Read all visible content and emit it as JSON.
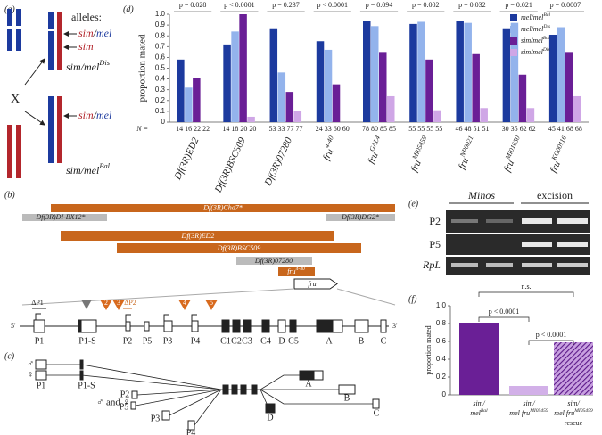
{
  "panel_labels": [
    "(a)",
    "(b)",
    "(c)",
    "(d)",
    "(e)",
    "(f)"
  ],
  "a": {
    "alleles": "alleles:",
    "top_sim_mel": [
      "sim",
      "/",
      "mel"
    ],
    "top_sim": "sim",
    "dis": {
      "text": "sim/mel",
      "sup": "Dis"
    },
    "cross": "X",
    "bottom_sim_mel": [
      "sim",
      "/",
      "mel"
    ],
    "bal": {
      "text": "sim/mel",
      "sup": "Bal"
    }
  },
  "b": {
    "deficiencies": [
      "Df(3R)Cha7*",
      "Df(3R)DI-BX12*",
      "Df(3R)DG2*",
      "Df(3R)ED2",
      "Df(3R)BSC509",
      "Df(3R)07280"
    ],
    "fru_allele": {
      "text": "fru",
      "sup": "4-40"
    },
    "gene": "fru",
    "deltas": [
      "ΔP1",
      "ΔP2"
    ],
    "insertions": [
      "2",
      "3",
      "4",
      "5"
    ],
    "ends": [
      "5'",
      "3'"
    ],
    "exons": [
      "P1",
      "P1-S",
      "P2",
      "P5",
      "P3",
      "P4",
      "C1",
      "C2",
      "C3",
      "C4",
      "D",
      "C5",
      "A",
      "B",
      "C"
    ]
  },
  "c": {
    "male": "♂",
    "female": "♀",
    "both": "♂ and ♀",
    "exons": [
      "P1",
      "P1-S",
      "P2",
      "P5",
      "P3",
      "P4",
      "A",
      "B",
      "C",
      "D"
    ]
  },
  "e": {
    "headers": [
      "Minos",
      "excision"
    ],
    "rows": [
      "P2",
      "P5",
      "RpL"
    ]
  },
  "chart_data": [
    {
      "type": "grouped-bar",
      "y_label": "proportion mated",
      "n_prefix": "N =",
      "categories": [
        "Df(3R)ED2",
        "Df(3R)BSC509",
        "Df(3R)07280",
        "fru",
        "fru",
        "fru",
        "fru",
        "fru",
        "fru"
      ],
      "category_sups": [
        null,
        null,
        null,
        "4-40",
        "GAL4",
        "MI05459",
        "NP0021",
        "MI01650",
        "KG00116"
      ],
      "p_values": [
        "p = 0.028",
        "p < 0.0001",
        "p = 0.237",
        "p < 0.0001",
        "p = 0.094",
        "p = 0.002",
        "p = 0.032",
        "p = 0.021",
        "p = 0.0007"
      ],
      "n_labels": [
        "14 16 22 22",
        "14 18 20 20",
        "53 33 77 77",
        "24 33 60 60",
        "78 80 85 85",
        "55 55 55 55",
        "46 48 51 51",
        "30 35 62 62",
        "45 41 68 68"
      ],
      "series": [
        {
          "name": "mel/mel",
          "sup": "Bal",
          "color": "#1c3a9e",
          "values": [
            0.58,
            0.72,
            0.87,
            0.75,
            0.94,
            0.91,
            0.94,
            0.87,
            0.81
          ]
        },
        {
          "name": "mel/mel",
          "sup": "Dis",
          "color": "#93b3ec",
          "values": [
            0.32,
            0.84,
            0.46,
            0.67,
            0.89,
            0.93,
            0.92,
            0.92,
            0.88
          ]
        },
        {
          "name": "sim/mel",
          "sup": "Bal",
          "color": "#6a1f96",
          "values": [
            0.41,
            1.0,
            0.28,
            0.35,
            0.65,
            0.58,
            0.63,
            0.44,
            0.65
          ]
        },
        {
          "name": "sim/mel",
          "sup": "Dis",
          "color": "#cfa6e6",
          "values": [
            0,
            0.05,
            0.1,
            0,
            0.24,
            0.11,
            0.13,
            0.13,
            0.24
          ]
        }
      ],
      "ylim": [
        0,
        1
      ],
      "yticks": [
        0,
        0.1,
        0.2,
        0.3,
        0.4,
        0.5,
        0.6,
        0.7,
        0.8,
        0.9,
        {
          "value": 1,
          "label": "1.0"
        }
      ],
      "legend": "upper right"
    },
    {
      "type": "bar",
      "y_label": "proportion mated",
      "categories": [
        [
          {
            "text": "sim/"
          },
          {
            "text": "mel",
            "sup": "Bal"
          }
        ],
        [
          {
            "text": "sim/"
          },
          {
            "text": "mel fru",
            "sup": "MI05459"
          }
        ],
        [
          {
            "text": "sim/"
          },
          {
            "text": "mel fru",
            "sup": "MI05459"
          },
          {
            "text": "rescue"
          }
        ]
      ],
      "values": [
        0.81,
        0.1,
        0.59
      ],
      "colors": [
        "#6a1f96",
        "#d2b0e8",
        "#7a3aa8"
      ],
      "hatch": [
        false,
        false,
        true
      ],
      "comparisons": [
        "n.s.",
        "p < 0.0001",
        "p < 0.0001"
      ],
      "ylim": [
        0,
        1
      ],
      "yticks": [
        0,
        0.2,
        0.4,
        0.6,
        0.8,
        {
          "value": 1,
          "label": "1.0"
        }
      ]
    }
  ]
}
